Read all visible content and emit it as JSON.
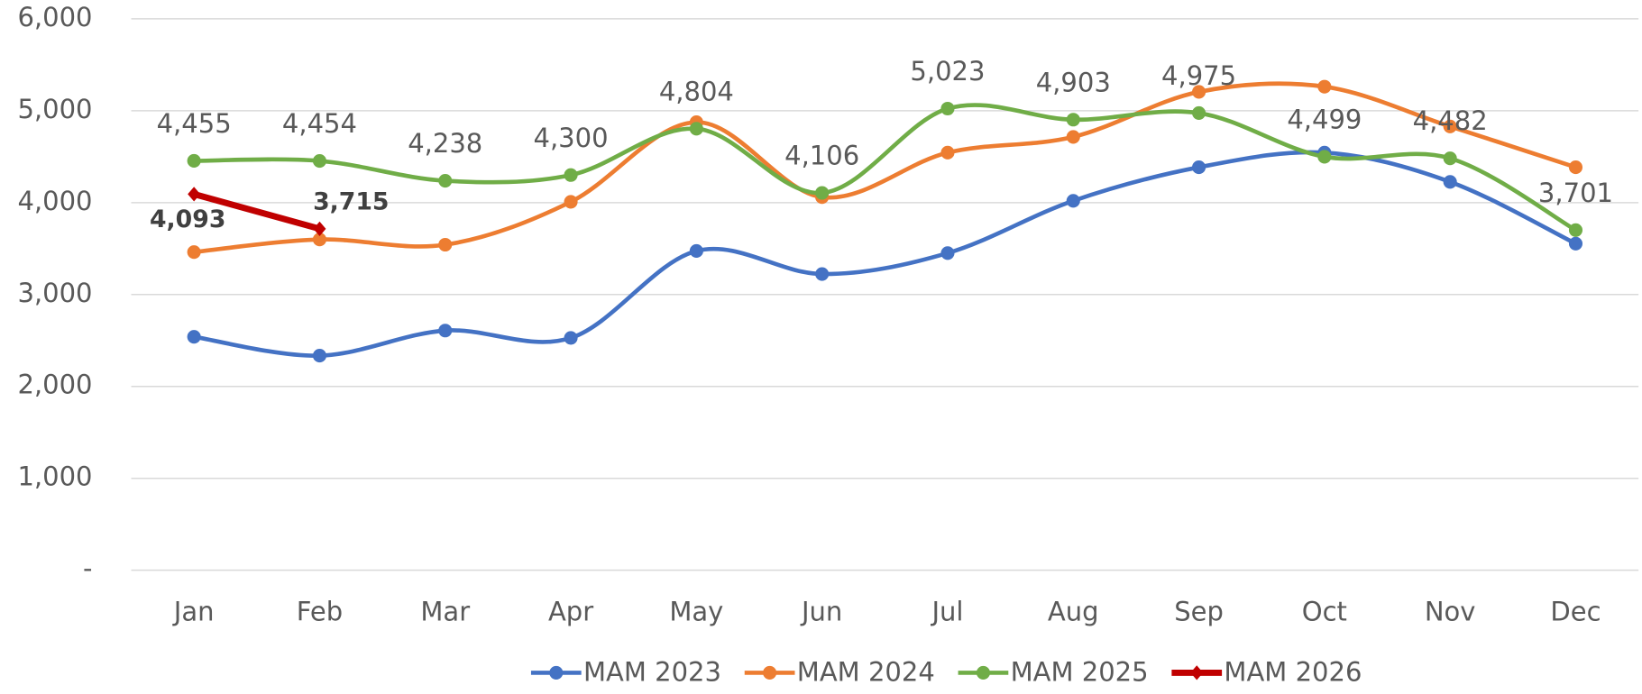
{
  "chart_data": {
    "type": "line",
    "smooth": true,
    "grid": true,
    "legend": "bottom",
    "categories": [
      "Jan",
      "Feb",
      "Mar",
      "Apr",
      "May",
      "Jun",
      "Jul",
      "Aug",
      "Sep",
      "Oct",
      "Nov",
      "Dec"
    ],
    "ylim": [
      0,
      6000
    ],
    "yticks": [
      {
        "value": 0,
        "label": "-"
      },
      {
        "value": 1000,
        "label": "1,000"
      },
      {
        "value": 2000,
        "label": "2,000"
      },
      {
        "value": 3000,
        "label": "3,000"
      },
      {
        "value": 4000,
        "label": "4,000"
      },
      {
        "value": 5000,
        "label": "5,000"
      },
      {
        "value": 6000,
        "label": "6,000"
      }
    ],
    "series": [
      {
        "name": "MAM 2023",
        "color": "#4472c4",
        "marker": "circle",
        "values": [
          2540,
          2335,
          2608,
          2528,
          3474,
          3223,
          3451,
          4020,
          4385,
          4544,
          4226,
          3554
        ]
      },
      {
        "name": "MAM 2024",
        "color": "#ed7d31",
        "marker": "circle",
        "values": [
          3462,
          3599,
          3542,
          4009,
          4875,
          4060,
          4544,
          4715,
          5205,
          5262,
          4829,
          4385
        ]
      },
      {
        "name": "MAM 2025",
        "color": "#70ad47",
        "marker": "circle",
        "values": [
          4455,
          4454,
          4238,
          4300,
          4804,
          4106,
          5023,
          4903,
          4975,
          4499,
          4482,
          3701
        ],
        "value_labels": [
          "4,455",
          "4,454",
          "4,238",
          "4,300",
          "4,804",
          "4,106",
          "5,023",
          "4,903",
          "4,975",
          "4,499",
          "4,482",
          "3,701"
        ]
      },
      {
        "name": "MAM 2026",
        "color": "#c00000",
        "marker": "diamond",
        "values": [
          4093,
          3715,
          null,
          null,
          null,
          null,
          null,
          null,
          null,
          null,
          null,
          null
        ],
        "value_labels": [
          "4,093",
          "3,715",
          null,
          null,
          null,
          null,
          null,
          null,
          null,
          null,
          null,
          null
        ]
      }
    ]
  }
}
